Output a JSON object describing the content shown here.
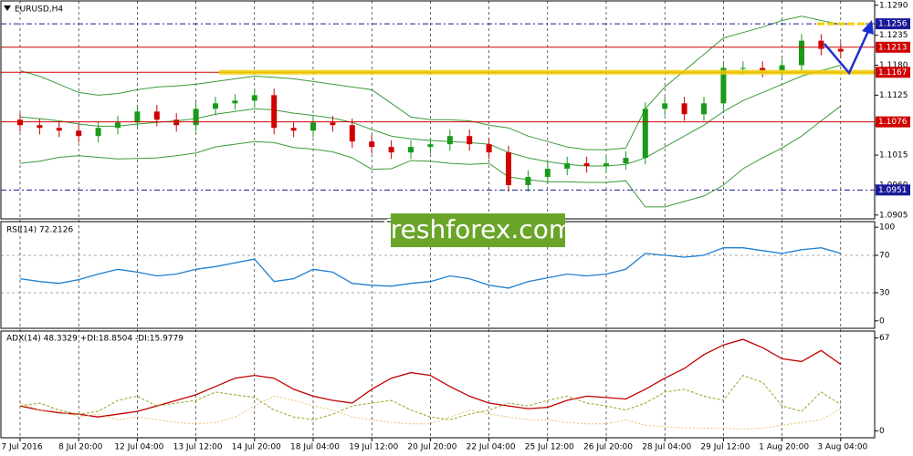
{
  "chart_data": [
    {
      "type": "candlestick",
      "title": "EURUSD,H4",
      "categories": [
        "7 Jul 2016",
        null,
        null,
        "8 Jul 20:00",
        null,
        null,
        "12 Jul 04:00",
        null,
        null,
        "13 Jul 12:00",
        null,
        null,
        "14 Jul 20:00",
        null,
        null,
        "18 Jul 04:00",
        null,
        null,
        "19 Jul 12:00",
        null,
        null,
        "20 Jul 20:00",
        null,
        null,
        "22 Jul 04:00",
        null,
        null,
        "25 Jul 12:00",
        null,
        null,
        "26 Jul 20:00",
        null,
        null,
        "28 Jul 04:00",
        null,
        null,
        "29 Jul 12:00",
        null,
        null,
        "1 Aug 20:00",
        null,
        null,
        "3 Aug 04:00"
      ],
      "open": [
        1.108,
        1.107,
        1.1065,
        1.106,
        1.105,
        1.1065,
        1.1075,
        1.1095,
        1.108,
        1.107,
        1.11,
        1.111,
        1.1115,
        1.1125,
        1.1065,
        1.106,
        1.1075,
        1.107,
        1.104,
        1.103,
        1.102,
        1.103,
        1.1035,
        1.105,
        1.1035,
        1.102,
        1.096,
        1.0975,
        1.099,
        1.1,
        1.0995,
        1.1,
        1.101,
        1.11,
        1.111,
        1.109,
        1.111,
        1.1175,
        1.1175,
        1.117,
        1.118,
        1.1225,
        1.121
      ],
      "high": [
        1.1092,
        1.1082,
        1.1077,
        1.1072,
        1.1077,
        1.1087,
        1.1107,
        1.1107,
        1.1092,
        1.1112,
        1.1122,
        1.1127,
        1.1137,
        1.1137,
        1.1077,
        1.1087,
        1.1087,
        1.1082,
        1.1052,
        1.1042,
        1.1042,
        1.1047,
        1.1062,
        1.1062,
        1.1047,
        1.1032,
        1.0987,
        1.1002,
        1.1012,
        1.1012,
        1.1012,
        1.1022,
        1.1112,
        1.1122,
        1.1122,
        1.1122,
        1.1187,
        1.1187,
        1.1187,
        1.1192,
        1.1237,
        1.1237,
        1.1222
      ],
      "low": [
        1.1058,
        1.1053,
        1.1048,
        1.1038,
        1.1038,
        1.1053,
        1.1063,
        1.1068,
        1.1058,
        1.1058,
        1.1088,
        1.1098,
        1.1103,
        1.1053,
        1.1048,
        1.1048,
        1.1058,
        1.1028,
        1.1018,
        1.1008,
        1.1008,
        1.1018,
        1.1023,
        1.1023,
        1.1008,
        1.0948,
        1.0948,
        1.0963,
        1.0978,
        1.0983,
        1.0983,
        1.0988,
        1.0998,
        1.1088,
        1.1078,
        1.1078,
        1.1098,
        1.1163,
        1.1158,
        1.1158,
        1.1168,
        1.1198,
        1.1193
      ],
      "close": [
        1.107,
        1.1065,
        1.106,
        1.105,
        1.1065,
        1.1075,
        1.1095,
        1.108,
        1.107,
        1.11,
        1.111,
        1.1115,
        1.1125,
        1.1065,
        1.106,
        1.1075,
        1.107,
        1.104,
        1.103,
        1.102,
        1.103,
        1.1035,
        1.105,
        1.1035,
        1.102,
        1.096,
        1.0975,
        1.099,
        1.1,
        1.0995,
        1.1,
        1.101,
        1.11,
        1.111,
        1.109,
        1.111,
        1.1175,
        1.1175,
        1.117,
        1.118,
        1.1225,
        1.121,
        1.1205
      ],
      "up_color": "#1a9a1a",
      "down_color": "#d00000",
      "band_color": "#3c9a3c",
      "bands": {
        "upper": [
          1.117,
          1.116,
          1.1145,
          1.113,
          1.1125,
          1.1128,
          1.1135,
          1.114,
          1.1142,
          1.1145,
          1.115,
          1.1155,
          1.116,
          1.1158,
          1.1155,
          1.115,
          1.1145,
          1.114,
          1.1135,
          1.111,
          1.1085,
          1.108,
          1.108,
          1.1078,
          1.107,
          1.1065,
          1.105,
          1.104,
          1.103,
          1.1025,
          1.1025,
          1.1028,
          1.11,
          1.114,
          1.117,
          1.12,
          1.123,
          1.124,
          1.125,
          1.1262,
          1.127,
          1.1262,
          1.1255
        ],
        "middle": [
          1.1085,
          1.1082,
          1.1078,
          1.1072,
          1.1068,
          1.1068,
          1.1072,
          1.1075,
          1.1078,
          1.1082,
          1.109,
          1.1095,
          1.11,
          1.1098,
          1.1092,
          1.1088,
          1.1083,
          1.1075,
          1.1062,
          1.105,
          1.1045,
          1.1042,
          1.104,
          1.1038,
          1.1035,
          1.102,
          1.101,
          1.1003,
          1.0998,
          1.0995,
          1.0995,
          1.0998,
          1.101,
          1.103,
          1.105,
          1.107,
          1.1095,
          1.1115,
          1.113,
          1.1145,
          1.116,
          1.117,
          1.118
        ],
        "lower": [
          1.1,
          1.1004,
          1.1011,
          1.1014,
          1.1011,
          1.1008,
          1.1009,
          1.101,
          1.1014,
          1.1019,
          1.103,
          1.1035,
          1.104,
          1.1038,
          1.1029,
          1.1026,
          1.1021,
          1.101,
          1.0989,
          1.099,
          1.1005,
          1.1004,
          1.1,
          1.0998,
          1.1,
          1.0975,
          1.097,
          1.0966,
          1.0966,
          1.0965,
          1.0965,
          1.0968,
          1.092,
          1.092,
          1.093,
          1.094,
          1.096,
          1.099,
          1.101,
          1.1028,
          1.105,
          1.1078,
          1.1105
        ]
      },
      "ylim": [
        1.0898,
        1.1298
      ],
      "yticks": [
        {
          "value": 1.129,
          "label": "1.1290"
        },
        {
          "value": 1.1235,
          "label": "1.1235"
        },
        {
          "value": 1.118,
          "label": "1.1180"
        },
        {
          "value": 1.1125,
          "label": "1.1125"
        },
        {
          "value": 1.107,
          "label": "1.1070"
        },
        {
          "value": 1.1015,
          "label": "1.1015"
        },
        {
          "value": 1.096,
          "label": "1.0960"
        },
        {
          "value": 1.0905,
          "label": "1.0905"
        }
      ],
      "levels": [
        {
          "value": 1.1256,
          "color": "#1a1a9a",
          "style": "dashed",
          "highlight": "dashed"
        },
        {
          "value": 1.1213,
          "color": "#d00000",
          "style": "solid"
        },
        {
          "value": 1.1167,
          "color": "#d00000",
          "style": "solid",
          "highlight": "solid"
        },
        {
          "value": 1.1076,
          "color": "#d00000",
          "style": "solid"
        },
        {
          "value": 1.0951,
          "color": "#1a1a9a",
          "style": "dashed"
        }
      ],
      "watermark": "freshforex.com"
    },
    {
      "type": "line",
      "title": "RSI(14) 72.2126",
      "series": [
        {
          "color": "#1e7fd0",
          "values": [
            45,
            42,
            40,
            44,
            50,
            55,
            52,
            48,
            50,
            55,
            58,
            62,
            66,
            42,
            45,
            55,
            52,
            40,
            38,
            37,
            40,
            42,
            48,
            45,
            38,
            35,
            42,
            46,
            50,
            48,
            50,
            55,
            72,
            70,
            68,
            70,
            78,
            78,
            75,
            72,
            76,
            78,
            72
          ]
        }
      ],
      "ylim": [
        -8,
        106
      ],
      "yticks": [
        0,
        30,
        70,
        100
      ],
      "levels": [
        70,
        30
      ]
    },
    {
      "type": "line",
      "title": "ADX(14) 48.3329 +DI:18.8504 -DI:15.9779",
      "series": [
        {
          "color": "#c00000",
          "dash": "none",
          "values": [
            18,
            15,
            13,
            12,
            10,
            12,
            14,
            18,
            22,
            26,
            32,
            38,
            40,
            38,
            30,
            25,
            22,
            20,
            30,
            38,
            42,
            40,
            32,
            25,
            20,
            18,
            16,
            17,
            22,
            25,
            24,
            23,
            30,
            38,
            45,
            55,
            62,
            66,
            60,
            52,
            50,
            58,
            48
          ]
        },
        {
          "color": "#9aa020",
          "dash": "3,2",
          "values": [
            18,
            20,
            15,
            12,
            14,
            22,
            25,
            18,
            20,
            22,
            28,
            26,
            24,
            15,
            10,
            8,
            12,
            18,
            20,
            22,
            15,
            10,
            8,
            12,
            15,
            20,
            18,
            22,
            25,
            20,
            18,
            15,
            20,
            28,
            30,
            25,
            22,
            40,
            35,
            18,
            14,
            28,
            19
          ]
        },
        {
          "color": "#e8c070",
          "dash": "2,2",
          "values": [
            20,
            15,
            14,
            10,
            12,
            8,
            10,
            8,
            6,
            5,
            6,
            10,
            18,
            25,
            22,
            18,
            15,
            10,
            8,
            6,
            5,
            5,
            10,
            15,
            12,
            10,
            8,
            8,
            6,
            5,
            5,
            8,
            4,
            3,
            2,
            2,
            2,
            1,
            2,
            4,
            6,
            8,
            16
          ]
        }
      ],
      "ylim": [
        -5,
        72
      ],
      "yticks": [
        0,
        67
      ]
    }
  ]
}
